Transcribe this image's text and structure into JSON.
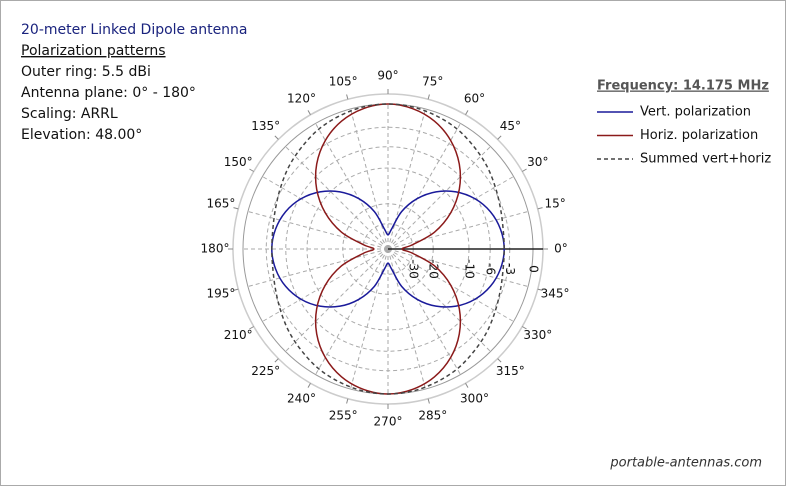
{
  "chart_data": {
    "type": "polar",
    "title": "20-meter Linked Dipole antenna",
    "subtitle": "Polarization patterns",
    "info": [
      "Outer ring: 5.5 dBi",
      "Antenna plane: 0° - 180°",
      "Scaling: ARRL",
      "Elevation: 48.00°"
    ],
    "legend_title": "Frequency: 14.175 MHz",
    "footer": "portable-antennas.com",
    "scale": "arrl",
    "x": [
      0,
      10,
      20,
      30,
      40,
      50,
      60,
      70,
      80,
      90,
      100,
      110,
      120,
      130,
      140,
      150,
      160,
      170,
      180,
      190,
      200,
      210,
      220,
      230,
      240,
      250,
      260,
      270,
      280,
      290,
      300,
      310,
      320,
      330,
      340,
      350
    ],
    "rlim": [
      -40,
      0
    ],
    "rticks": [
      0,
      -3,
      -6,
      -10,
      -20,
      -30
    ],
    "xticks": [
      {
        "value": 0,
        "label": "0°"
      },
      {
        "value": 15,
        "label": "15°"
      },
      {
        "value": 30,
        "label": "30°"
      },
      {
        "value": 45,
        "label": "45°"
      },
      {
        "value": 60,
        "label": "60°"
      },
      {
        "value": 75,
        "label": "75°"
      },
      {
        "value": 90,
        "label": "90°"
      },
      {
        "value": 105,
        "label": "105°"
      },
      {
        "value": 120,
        "label": "120°"
      },
      {
        "value": 135,
        "label": "135°"
      },
      {
        "value": 150,
        "label": "150°"
      },
      {
        "value": 165,
        "label": "165°"
      },
      {
        "value": 180,
        "label": "180°"
      },
      {
        "value": 195,
        "label": "195°"
      },
      {
        "value": 210,
        "label": "210°"
      },
      {
        "value": 225,
        "label": "225°"
      },
      {
        "value": 240,
        "label": "240°"
      },
      {
        "value": 255,
        "label": "255°"
      },
      {
        "value": 270,
        "label": "270°"
      },
      {
        "value": 285,
        "label": "285°"
      },
      {
        "value": 300,
        "label": "300°"
      },
      {
        "value": 315,
        "label": "315°"
      },
      {
        "value": 330,
        "label": "330°"
      },
      {
        "value": 345,
        "label": "345°"
      }
    ],
    "series": [
      {
        "name": "Vert. polarization",
        "color": "#1a1a9a",
        "dash": false,
        "values": [
          -3.8,
          -4.1,
          -4.9,
          -6.3,
          -8.4,
          -11.4,
          -15.7,
          -22.2,
          -33.9,
          -40,
          -33.9,
          -22.2,
          -15.7,
          -11.4,
          -8.4,
          -6.3,
          -4.9,
          -4.1,
          -3.8,
          -4.1,
          -4.9,
          -6.3,
          -8.4,
          -11.4,
          -15.7,
          -22.2,
          -33.9,
          -40,
          -33.9,
          -22.2,
          -15.7,
          -11.4,
          -8.4,
          -6.3,
          -4.9,
          -4.1
        ]
      },
      {
        "name": "Horiz. polarization",
        "color": "#8b1a1a",
        "dash": false,
        "values": [
          -40,
          -30.1,
          -18.4,
          -11.9,
          -7.6,
          -4.6,
          -2.5,
          -1.1,
          -0.3,
          0,
          -0.3,
          -1.1,
          -2.5,
          -4.6,
          -7.6,
          -11.9,
          -18.4,
          -30.1,
          -40,
          -30.1,
          -18.4,
          -11.9,
          -7.6,
          -4.6,
          -2.5,
          -1.1,
          -0.3,
          0,
          -0.3,
          -1.1,
          -2.5,
          -4.6,
          -7.6,
          -11.9,
          -18.4,
          -30.1
        ]
      },
      {
        "name": "Summed vert+horiz",
        "color": "#444444",
        "dash": true,
        "values": [
          -3.8,
          -3.7,
          -3.3,
          -2.7,
          -2.0,
          -1.4,
          -0.8,
          -0.4,
          -0.1,
          0,
          -0.1,
          -0.4,
          -0.8,
          -1.4,
          -2.0,
          -2.7,
          -3.3,
          -3.7,
          -3.8,
          -3.7,
          -3.3,
          -2.7,
          -2.0,
          -1.4,
          -0.8,
          -0.4,
          -0.1,
          0,
          -0.1,
          -0.4,
          -0.8,
          -1.4,
          -2.0,
          -2.7,
          -3.3,
          -3.7
        ]
      }
    ]
  }
}
